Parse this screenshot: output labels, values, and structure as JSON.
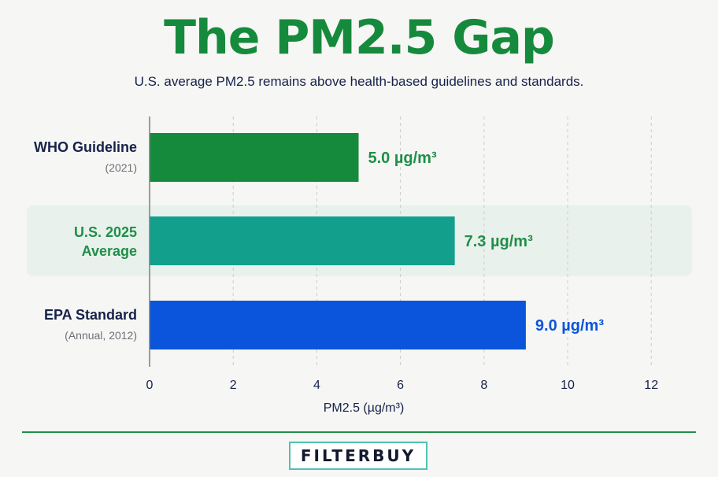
{
  "title": "The PM2.5 Gap",
  "subtitle": "U.S.  average PM2.5 remains above health-based guidelines and standards.",
  "chart_data": {
    "type": "bar",
    "orientation": "horizontal",
    "xlabel": "PM2.5 (µg/m³)",
    "xlim": [
      0,
      12
    ],
    "xticks": [
      0,
      2,
      4,
      6,
      8,
      10,
      12
    ],
    "grid": "vertical dashed",
    "categories": [
      {
        "label": "WHO Guideline",
        "sublabel": "(2021)",
        "label_color": "#16224a",
        "highlight": false
      },
      {
        "label": "U.S. 2025\nAverage",
        "sublabel": "",
        "label_color": "#1f8f47",
        "highlight": true
      },
      {
        "label": "EPA Standard",
        "sublabel": "(Annual, 2012)",
        "label_color": "#16224a",
        "highlight": false
      }
    ],
    "values": [
      5.0,
      7.3,
      9.0
    ],
    "value_labels": [
      "5.0 µg/m³",
      "7.3 µg/m³",
      "9.0 µg/m³"
    ],
    "colors": [
      "#168a3c",
      "#12a08d",
      "#0a55db"
    ],
    "label_colors": [
      "#1f8f47",
      "#1f8f47",
      "#0a55db"
    ]
  },
  "footer": {
    "logo_text": "FILTERBUY"
  }
}
